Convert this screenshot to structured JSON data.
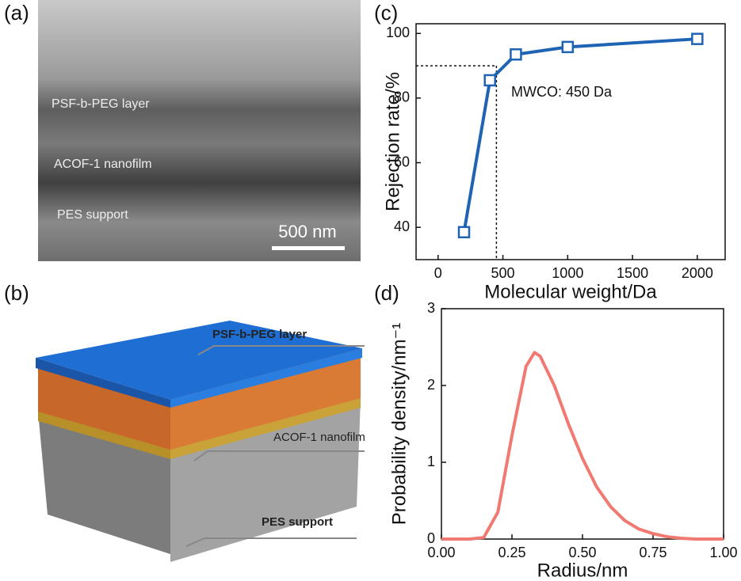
{
  "panel_labels": [
    "(a)",
    "(b)",
    "(c)",
    "(d)"
  ],
  "sem": {
    "labels": [
      "PSF-b-PEG layer",
      "ACOF-1 nanofilm",
      "PES support"
    ],
    "scale_bar": "500 nm"
  },
  "schematic": {
    "labels": [
      "PSF-b-PEG layer",
      "ACOF-1 nanofilm",
      "PES support"
    ]
  },
  "chart_data": [
    {
      "type": "line",
      "xlabel": "Molecular weight/Da",
      "ylabel": "Rejection rate/%",
      "x": [
        200,
        400,
        600,
        1000,
        2000
      ],
      "series": [
        {
          "color": "#1f63b5",
          "values": [
            38.5,
            85.5,
            93.5,
            95.8,
            98.3
          ]
        }
      ],
      "markers": "square",
      "xlim": [
        -170,
        2215
      ],
      "ylim": [
        30,
        103
      ],
      "xticks": [
        0,
        500,
        1000,
        1500,
        2000
      ],
      "yticks": [
        40,
        60,
        80,
        100
      ],
      "reference": {
        "x": 450,
        "y": 90
      },
      "annotation": "MWCO: 450 Da"
    },
    {
      "type": "line",
      "xlabel": "Radius/nm",
      "ylabel": "Probability density/nm⁻¹",
      "x": [
        0,
        0.1,
        0.15,
        0.2,
        0.25,
        0.3,
        0.33,
        0.35,
        0.4,
        0.45,
        0.5,
        0.55,
        0.6,
        0.65,
        0.7,
        0.75,
        0.8,
        0.85,
        0.9,
        1.0
      ],
      "series": [
        {
          "color": "#f07a72",
          "values": [
            0,
            0,
            0.02,
            0.35,
            1.35,
            2.25,
            2.43,
            2.38,
            2.0,
            1.5,
            1.05,
            0.68,
            0.42,
            0.24,
            0.13,
            0.07,
            0.03,
            0.01,
            0,
            0
          ]
        }
      ],
      "xlim": [
        0,
        1
      ],
      "ylim": [
        0,
        3
      ],
      "xticks": [
        {
          "value": 0,
          "label": "0.00"
        },
        {
          "value": 0.25,
          "label": "0.25"
        },
        {
          "value": 0.5,
          "label": "0.50"
        },
        {
          "value": 0.75,
          "label": "0.75"
        },
        {
          "value": 1,
          "label": "1.00"
        }
      ],
      "yticks": [
        0,
        1,
        2,
        3
      ]
    }
  ]
}
